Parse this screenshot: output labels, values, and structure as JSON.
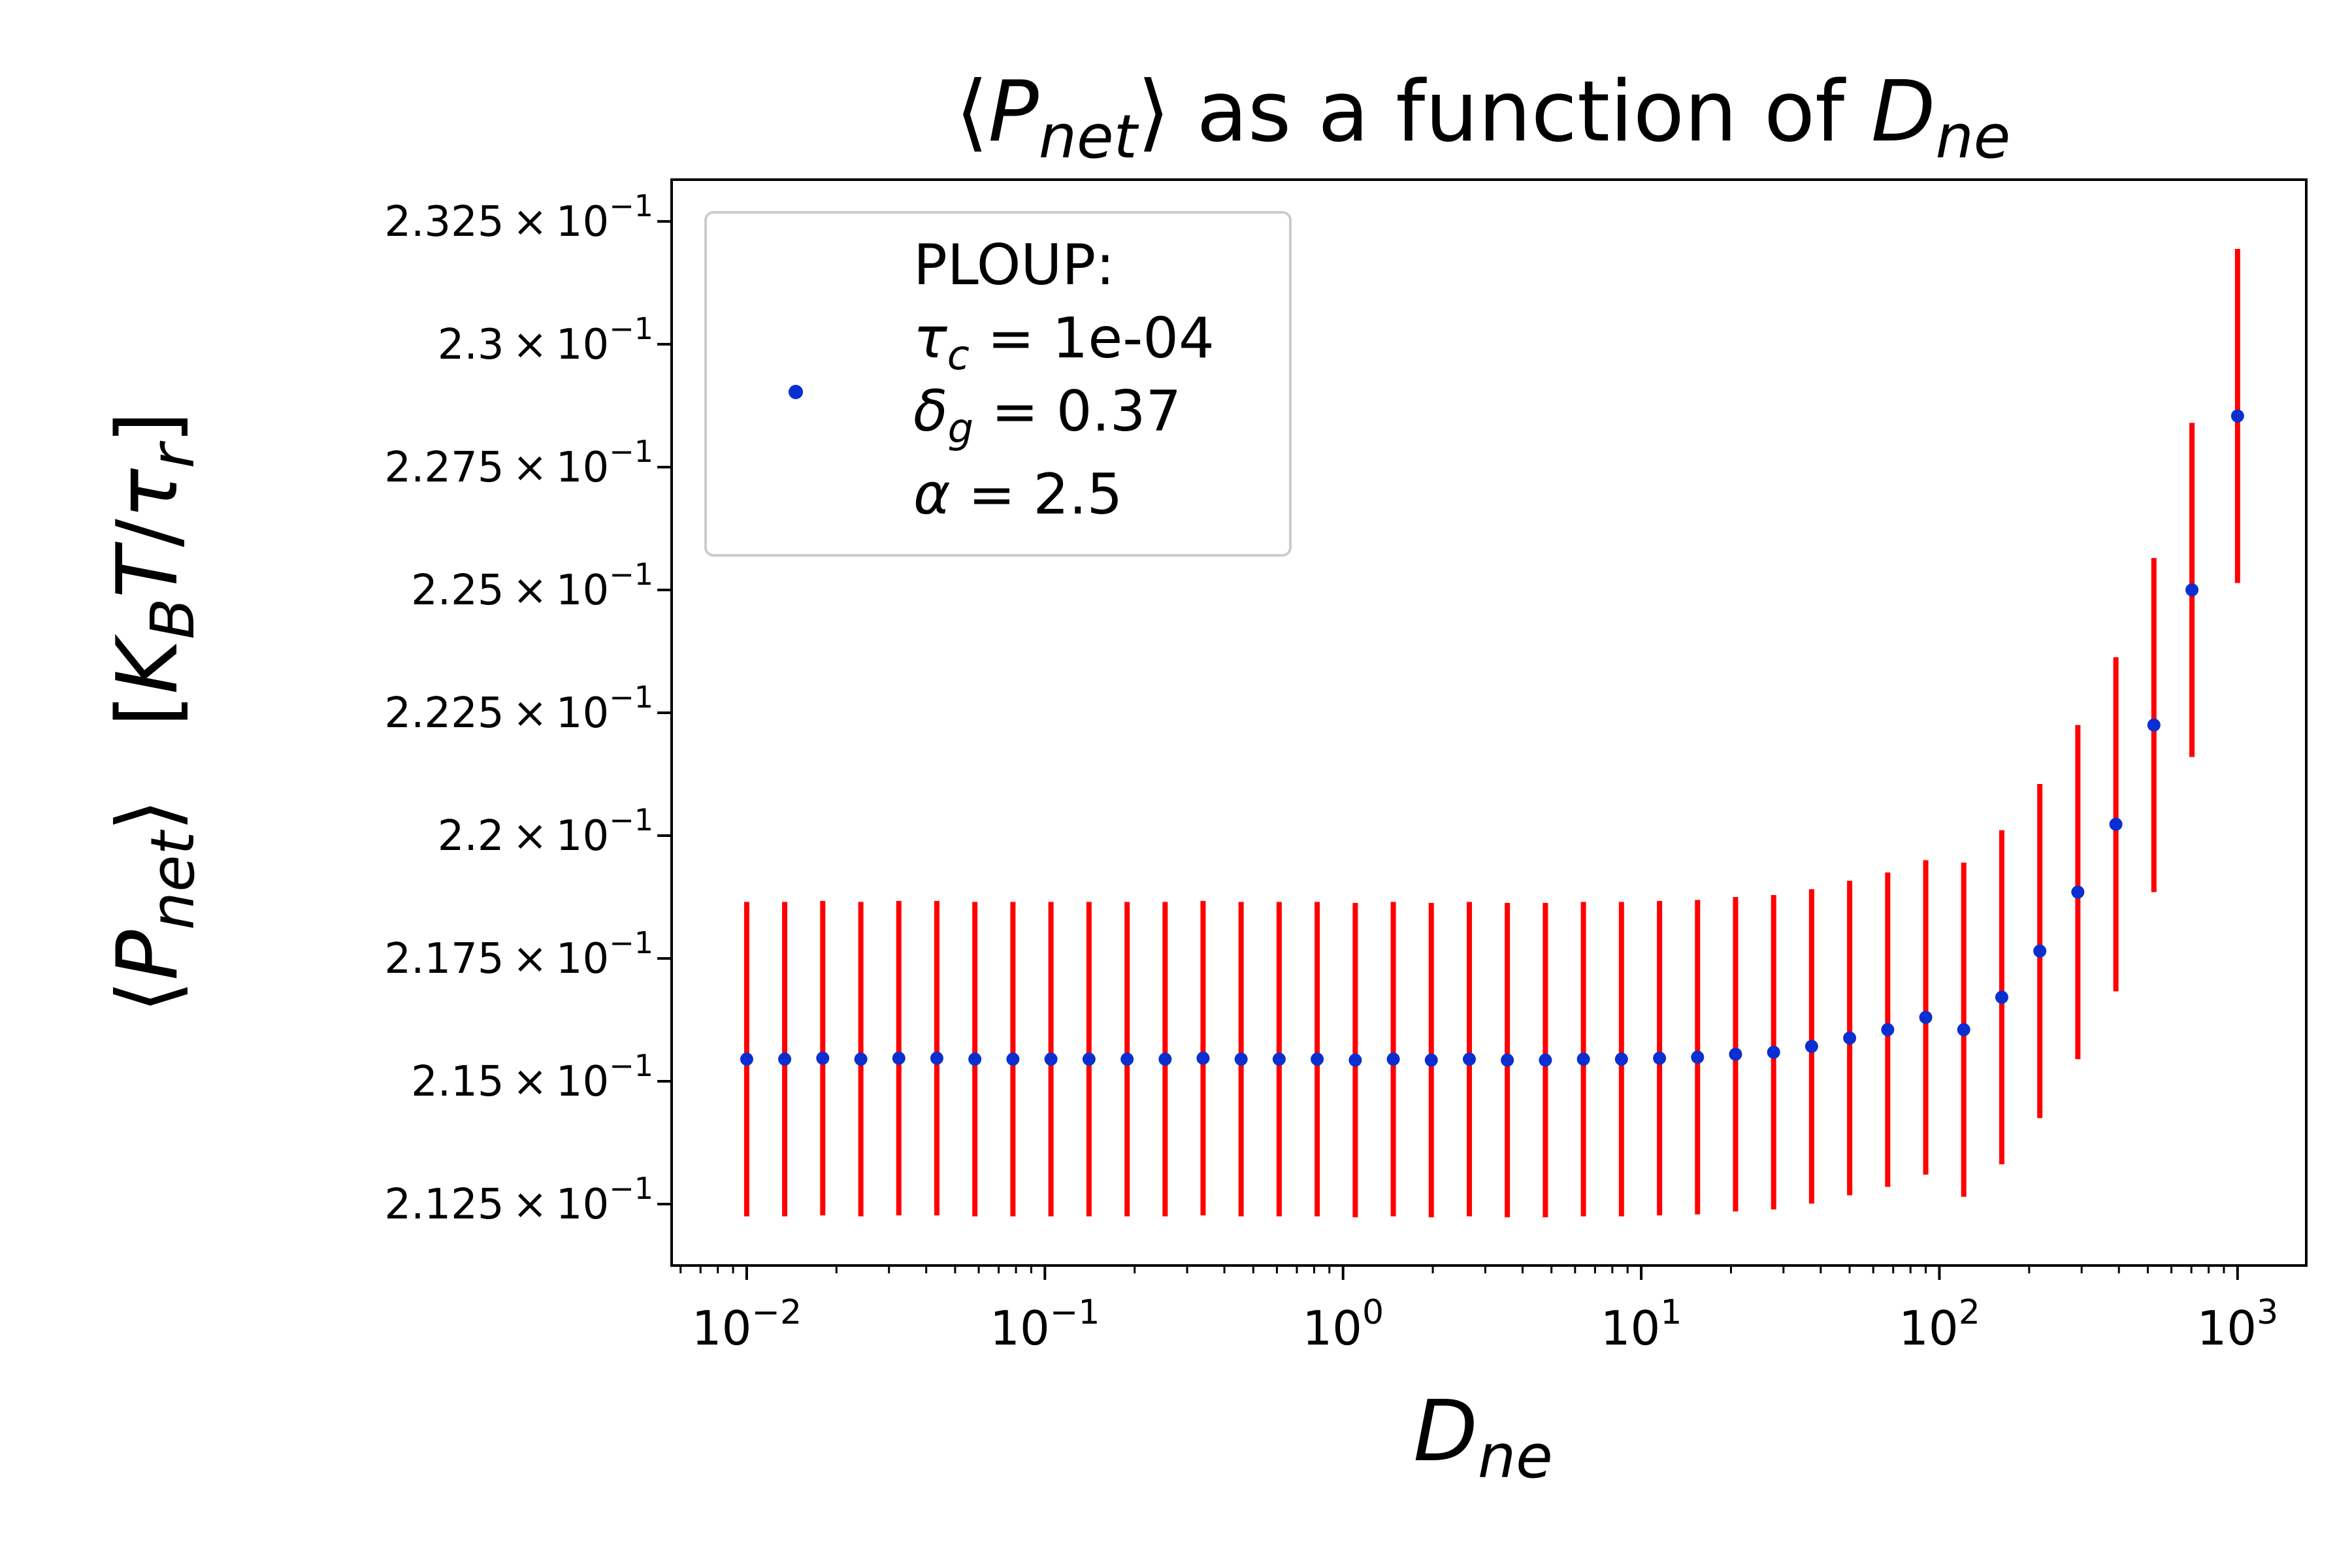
{
  "chart_data": {
    "type": "scatter",
    "title": {
      "prefix": "⟨",
      "var": "P",
      "sub": "net",
      "mid": "⟩ as a function of ",
      "var2": "D",
      "sub2": "ne"
    },
    "xlabel": {
      "var": "D",
      "sub": "ne"
    },
    "ylabel": {
      "open": "⟨",
      "var": "P",
      "sub": "net",
      "close": "⟩",
      "unit_open": "[",
      "unit_k": "K",
      "unit_k_sub": "B",
      "unit_t": "T",
      "unit_slash": "/",
      "unit_tau": "τ",
      "unit_tau_sub": "r",
      "unit_close": "]"
    },
    "xscale": "log",
    "xlim": [
      0.0056,
      1700
    ],
    "ylim": [
      0.21125,
      0.23335
    ],
    "x_ticks": [
      {
        "value": 0.01,
        "base": "10",
        "exp": "−2"
      },
      {
        "value": 0.1,
        "base": "10",
        "exp": "−1"
      },
      {
        "value": 1,
        "base": "10",
        "exp": "0"
      },
      {
        "value": 10,
        "base": "10",
        "exp": "1"
      },
      {
        "value": 100,
        "base": "10",
        "exp": "2"
      },
      {
        "value": 1000,
        "base": "10",
        "exp": "3"
      }
    ],
    "y_ticks": [
      {
        "value": 0.2125,
        "mant": "2.125",
        "times": "×",
        "base": "10",
        "exp": "−1"
      },
      {
        "value": 0.215,
        "mant": "2.15",
        "times": "×",
        "base": "10",
        "exp": "−1"
      },
      {
        "value": 0.2175,
        "mant": "2.175",
        "times": "×",
        "base": "10",
        "exp": "−1"
      },
      {
        "value": 0.22,
        "mant": "2.2",
        "times": "×",
        "base": "10",
        "exp": "−1"
      },
      {
        "value": 0.2225,
        "mant": "2.225",
        "times": "×",
        "base": "10",
        "exp": "−1"
      },
      {
        "value": 0.225,
        "mant": "2.25",
        "times": "×",
        "base": "10",
        "exp": "−1"
      },
      {
        "value": 0.2275,
        "mant": "2.275",
        "times": "×",
        "base": "10",
        "exp": "−1"
      },
      {
        "value": 0.23,
        "mant": "2.3",
        "times": "×",
        "base": "10",
        "exp": "−1"
      },
      {
        "value": 0.2325,
        "mant": "2.325",
        "times": "×",
        "base": "10",
        "exp": "−1"
      }
    ],
    "grid": false,
    "legend": {
      "position": "upper-left",
      "lines": [
        {
          "text": "PLOUP:"
        },
        {
          "var": "τ",
          "sub": "c",
          "rest": " = 1e-04"
        },
        {
          "var": "δ",
          "sub": "g",
          "rest": " = 0.37"
        },
        {
          "var": "α",
          "rest": " = 2.5"
        }
      ]
    },
    "colors": {
      "points": "#0a2fd0",
      "errorbars": "#ff0000",
      "axes": "#000000"
    },
    "series": [
      {
        "marker": "dot",
        "x": [
          0.01,
          0.01341,
          0.01799,
          0.02414,
          0.03237,
          0.04342,
          0.05824,
          0.07813,
          0.1048,
          0.1406,
          0.1887,
          0.2531,
          0.3393,
          0.4551,
          0.6105,
          0.819,
          1.099,
          1.474,
          1.977,
          2.652,
          3.556,
          4.771,
          6.4,
          8.585,
          11.52,
          15.45,
          20.72,
          27.8,
          37.28,
          50.01,
          67.09,
          90.0,
          120.7,
          161.9,
          217.2,
          291.3,
          390.8,
          524.2,
          703.2,
          1000.0
        ],
        "y": [
          0.21545,
          0.21545,
          0.21547,
          0.21545,
          0.21547,
          0.21547,
          0.21545,
          0.21545,
          0.21545,
          0.21545,
          0.21545,
          0.21545,
          0.21547,
          0.21545,
          0.21545,
          0.21545,
          0.21543,
          0.21545,
          0.21543,
          0.21545,
          0.21543,
          0.21543,
          0.21545,
          0.21545,
          0.21547,
          0.21549,
          0.21555,
          0.21559,
          0.21571,
          0.21588,
          0.21605,
          0.2163,
          0.21605,
          0.21671,
          0.21765,
          0.21885,
          0.22023,
          0.22225,
          0.225,
          0.22854
        ],
        "err": [
          0.0032,
          0.0032,
          0.0032,
          0.0032,
          0.0032,
          0.0032,
          0.0032,
          0.0032,
          0.0032,
          0.0032,
          0.0032,
          0.0032,
          0.0032,
          0.0032,
          0.0032,
          0.0032,
          0.0032,
          0.0032,
          0.0032,
          0.0032,
          0.0032,
          0.0032,
          0.0032,
          0.0032,
          0.0032,
          0.0032,
          0.0032,
          0.0032,
          0.0032,
          0.0032,
          0.0032,
          0.0032,
          0.0034,
          0.0034,
          0.0034,
          0.0034,
          0.0034,
          0.0034,
          0.0034,
          0.0034
        ]
      }
    ]
  }
}
